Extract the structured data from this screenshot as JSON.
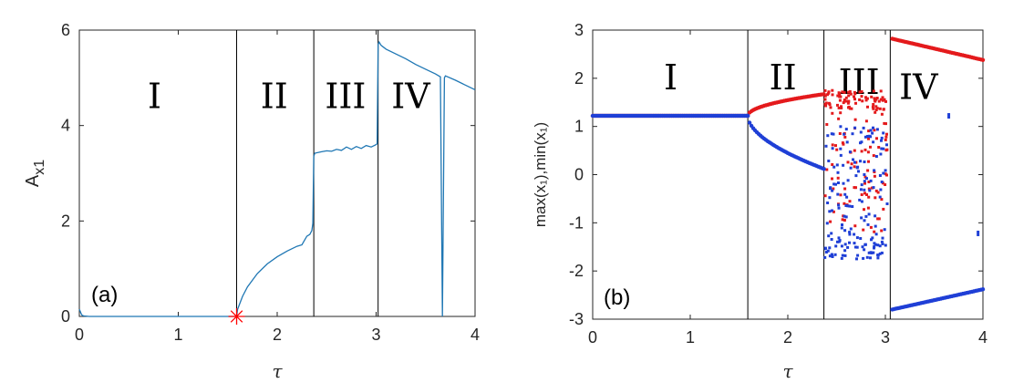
{
  "chart_data": [
    {
      "type": "line",
      "panel_label": "(a)",
      "xlabel": "τ",
      "ylabel": {
        "base": "A",
        "sub": "x1"
      },
      "xlim": [
        0,
        4
      ],
      "ylim": [
        0,
        6
      ],
      "xticks": [
        "0",
        "1",
        "2",
        "3",
        "4"
      ],
      "yticks": [
        "0",
        "2",
        "4",
        "6"
      ],
      "boundaries": [
        1.59,
        2.37,
        3.02
      ],
      "regions": [
        {
          "label": "I",
          "x": 0.76,
          "y": 4.6
        },
        {
          "label": "II",
          "x": 1.97,
          "y": 4.6
        },
        {
          "label": "III",
          "x": 2.69,
          "y": 4.6
        },
        {
          "label": "IV",
          "x": 3.35,
          "y": 4.6
        }
      ],
      "series": [
        {
          "color": "#1f77b4",
          "x": [
            0,
            0.01,
            0.02,
            0.03,
            0.05,
            0.1,
            0.3,
            0.6,
            1.0,
            1.3,
            1.5,
            1.59,
            1.6,
            1.65,
            1.7,
            1.8,
            1.9,
            2.0,
            2.1,
            2.2,
            2.25,
            2.3,
            2.33,
            2.35,
            2.36,
            2.37,
            2.38,
            2.45,
            2.5,
            2.55,
            2.6,
            2.65,
            2.7,
            2.75,
            2.8,
            2.85,
            2.9,
            2.95,
            3.0,
            3.01,
            3.02,
            3.03,
            3.05,
            3.1,
            3.2,
            3.3,
            3.4,
            3.5,
            3.6,
            3.65,
            3.66,
            3.67,
            3.68,
            3.69,
            3.7,
            3.8,
            3.9,
            4.0
          ],
          "y": [
            0.15,
            0.1,
            0.05,
            0.02,
            0.01,
            0.0,
            0.0,
            0.0,
            0.0,
            0.0,
            0.0,
            0.0,
            0.15,
            0.42,
            0.62,
            0.9,
            1.1,
            1.25,
            1.37,
            1.47,
            1.5,
            1.68,
            1.72,
            1.8,
            1.95,
            3.35,
            3.42,
            3.45,
            3.47,
            3.46,
            3.5,
            3.48,
            3.55,
            3.5,
            3.56,
            3.52,
            3.58,
            3.55,
            3.6,
            3.62,
            5.7,
            5.75,
            5.68,
            5.6,
            5.5,
            5.4,
            5.28,
            5.18,
            5.08,
            5.02,
            2.5,
            0.0,
            2.5,
            5.0,
            5.04,
            4.95,
            4.85,
            4.75
          ],
          "marker": {
            "x": 1.59,
            "y": 0.0,
            "symbol": "asterisk",
            "color": "#ff0000"
          }
        }
      ]
    },
    {
      "type": "scatter",
      "panel_label": "(b)",
      "xlabel": "τ",
      "ylabel": "max(x₁),min(x₁)",
      "xlim": [
        0,
        4
      ],
      "ylim": [
        -3,
        3
      ],
      "xticks": [
        "0",
        "1",
        "2",
        "3",
        "4"
      ],
      "yticks": [
        "-3",
        "-2",
        "-1",
        "0",
        "1",
        "2",
        "3"
      ],
      "boundaries": [
        1.59,
        2.37,
        3.05
      ],
      "regions": [
        {
          "label": "I",
          "x": 0.8,
          "y": 2.0
        },
        {
          "label": "II",
          "x": 1.95,
          "y": 2.0
        },
        {
          "label": "III",
          "x": 2.73,
          "y": 1.9
        },
        {
          "label": "IV",
          "x": 3.34,
          "y": 1.8
        }
      ],
      "series": [
        {
          "name_hidden": "max",
          "color": "#e41a1c",
          "segments": [
            {
              "x_from": 0.0,
              "x_to": 1.59,
              "y_from": 1.22,
              "y_to": 1.22
            },
            {
              "x_from": 1.59,
              "x_to": 2.37,
              "fn": "upper_branch"
            },
            {
              "x_from": 3.07,
              "x_to": 4.0,
              "y_from": 2.82,
              "y_to": 2.38
            }
          ],
          "chaotic_band": {
            "x_from": 2.38,
            "x_to": 3.02,
            "y_from": -1.2,
            "y_to": 1.75
          }
        },
        {
          "name_hidden": "min",
          "color": "#1f3fd6",
          "segments": [
            {
              "x_from": 0.0,
              "x_to": 1.59,
              "y_from": 1.22,
              "y_to": 1.22
            },
            {
              "x_from": 1.59,
              "x_to": 2.37,
              "fn": "lower_branch"
            },
            {
              "x_from": 3.07,
              "x_to": 4.0,
              "y_from": -2.8,
              "y_to": -2.38
            }
          ],
          "chaotic_band": {
            "x_from": 2.38,
            "x_to": 3.02,
            "y_from": -1.75,
            "y_to": 1.05
          },
          "isolated_points": [
            {
              "x": 3.65,
              "y": 1.22
            },
            {
              "x": 3.95,
              "y": -1.22
            }
          ]
        }
      ]
    }
  ]
}
